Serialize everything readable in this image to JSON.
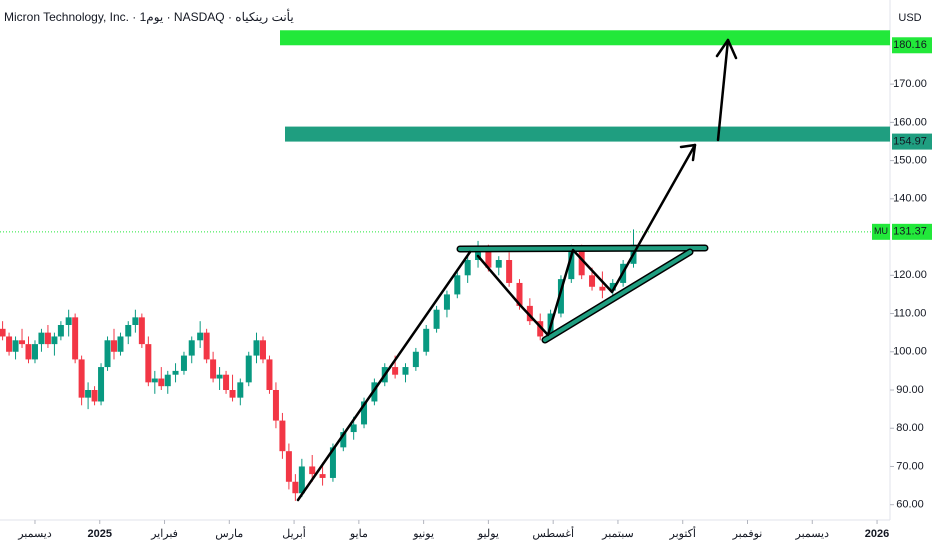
{
  "chart_data": {
    "type": "candlestick",
    "title": "Micron Technology, Inc. · 1يوم · NASDAQ · يأنت رينكياه",
    "currency": "USD",
    "x": [
      -0.5,
      -0.4,
      -0.3,
      -0.2,
      -0.1,
      0,
      0.1,
      0.2,
      0.3,
      0.4,
      0.52,
      0.62,
      0.72,
      0.82,
      0.92,
      1.02,
      1.12,
      1.22,
      1.32,
      1.44,
      1.55,
      1.65,
      1.75,
      1.85,
      1.95,
      2.05,
      2.17,
      2.3,
      2.42,
      2.55,
      2.65,
      2.75,
      2.85,
      2.95,
      3.05,
      3.17,
      3.3,
      3.42,
      3.52,
      3.62,
      3.72,
      3.82,
      3.92,
      4.02,
      4.12,
      4.28,
      4.44,
      4.6,
      4.76,
      4.92,
      5.08,
      5.24,
      5.4,
      5.56,
      5.72,
      5.88,
      6.04,
      6.2,
      6.36,
      6.52,
      6.68,
      6.84,
      7,
      7.16,
      7.32,
      7.48,
      7.64,
      7.8,
      7.96,
      8.12,
      8.28,
      8.44,
      8.6,
      8.76,
      8.92,
      9.08,
      9.24
    ],
    "open": [
      106,
      104,
      100,
      103,
      102,
      98,
      102,
      105,
      102,
      104,
      107,
      109,
      98,
      88,
      90,
      87,
      96,
      103,
      100,
      104,
      107,
      109,
      102,
      92,
      93,
      91,
      94,
      95,
      99,
      103,
      105,
      98,
      93,
      94,
      90,
      88,
      92,
      99,
      103,
      98,
      90,
      82,
      74,
      66,
      63,
      70,
      68,
      67,
      75,
      79,
      81,
      87,
      92,
      96,
      94,
      96,
      100,
      106,
      111,
      115,
      120,
      124,
      127,
      122,
      124,
      118,
      112,
      108,
      104,
      110,
      119,
      127,
      120,
      117,
      116,
      118,
      123
    ],
    "high": [
      108,
      105,
      104,
      106,
      104,
      103,
      106,
      107,
      105,
      108,
      111,
      110,
      99,
      92,
      91,
      97,
      104,
      106,
      105,
      108,
      111,
      110,
      104,
      95,
      96,
      95,
      97,
      100,
      104,
      108,
      106,
      100,
      96,
      95,
      94,
      93,
      100,
      105,
      104,
      99,
      92,
      84,
      76,
      68,
      72,
      73,
      71,
      76,
      80,
      83,
      88,
      93,
      97,
      99,
      97,
      101,
      107,
      112,
      116,
      121,
      125,
      129,
      128,
      125,
      126,
      119,
      114,
      110,
      111,
      120,
      128,
      128,
      122,
      121,
      119,
      124,
      132
    ],
    "low": [
      103,
      99,
      98,
      101,
      97,
      97,
      100,
      101,
      99,
      103,
      104,
      97,
      86,
      85,
      86,
      86,
      95,
      98,
      99,
      102,
      105,
      101,
      91,
      89,
      90,
      89,
      92,
      94,
      97,
      101,
      97,
      92,
      90,
      89,
      87,
      86,
      91,
      97,
      97,
      89,
      80,
      72,
      64,
      61,
      62,
      66,
      65,
      66,
      74,
      77,
      80,
      86,
      91,
      93,
      92,
      95,
      99,
      105,
      109,
      114,
      118,
      122,
      121,
      120,
      117,
      111,
      107,
      103,
      103,
      109,
      118,
      119,
      116,
      114,
      114,
      117,
      122
    ],
    "close": [
      104,
      100,
      103,
      102,
      98,
      102,
      105,
      102,
      104,
      107,
      109,
      98,
      88,
      90,
      87,
      96,
      103,
      100,
      104,
      107,
      109,
      102,
      92,
      93,
      91,
      94,
      95,
      99,
      103,
      105,
      98,
      93,
      94,
      90,
      88,
      92,
      99,
      103,
      98,
      90,
      82,
      74,
      66,
      63,
      70,
      68,
      67,
      75,
      79,
      81,
      87,
      92,
      96,
      94,
      96,
      100,
      106,
      111,
      115,
      120,
      124,
      127,
      122,
      124,
      118,
      112,
      108,
      104,
      110,
      119,
      127,
      120,
      117,
      116,
      118,
      123,
      128
    ],
    "up_color": "#089981",
    "down_color": "#f23645",
    "xlim": [
      -0.54,
      13.2
    ],
    "ylim": [
      56,
      192
    ],
    "yticks": [
      {
        "value": 60,
        "label": "60.00"
      },
      {
        "value": 70,
        "label": "70.00"
      },
      {
        "value": 80,
        "label": "80.00"
      },
      {
        "value": 90,
        "label": "90.00"
      },
      {
        "value": 100,
        "label": "100.00"
      },
      {
        "value": 110,
        "label": "110.00"
      },
      {
        "value": 120,
        "label": "120.00"
      },
      {
        "value": 140,
        "label": "140.00"
      },
      {
        "value": 150,
        "label": "150.00"
      },
      {
        "value": 160,
        "label": "160.00"
      },
      {
        "value": 170,
        "label": "170.00"
      }
    ],
    "xticks": [
      {
        "value": 0,
        "label": "ديسمبر"
      },
      {
        "value": 1,
        "label": "2025"
      },
      {
        "value": 2,
        "label": "فبراير"
      },
      {
        "value": 3,
        "label": "مارس"
      },
      {
        "value": 4,
        "label": "أبريل"
      },
      {
        "value": 5,
        "label": "مايو"
      },
      {
        "value": 6,
        "label": "يونيو"
      },
      {
        "value": 7,
        "label": "يوليو"
      },
      {
        "value": 8,
        "label": "أغسطس"
      },
      {
        "value": 9,
        "label": "سبتمبر"
      },
      {
        "value": 10,
        "label": "أكتوبر"
      },
      {
        "value": 11,
        "label": "نوفمبر"
      },
      {
        "value": 12,
        "label": "ديسمبر"
      },
      {
        "value": 13,
        "label": "2026"
      }
    ],
    "zones": [
      {
        "value": 180.16,
        "color": "#22e83a"
      },
      {
        "value": 154.97,
        "color": "#1f9e80"
      }
    ],
    "last_price": {
      "symbol": "MU",
      "value": 131.37,
      "color": "#22e83a"
    }
  }
}
